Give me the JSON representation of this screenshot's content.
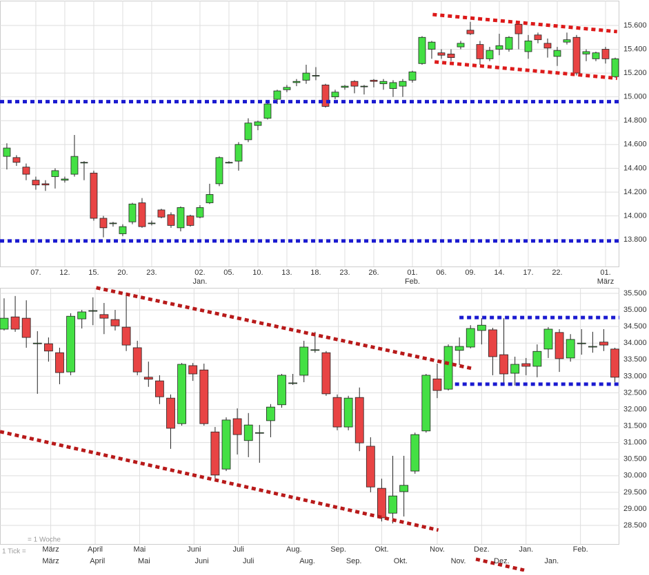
{
  "chart_data": [
    {
      "type": "candlestick",
      "xlim": [
        -0.71,
        63.43
      ],
      "ylim": [
        13575,
        15808
      ],
      "yticks": [
        {
          "value": 13800,
          "label": "13.800"
        },
        {
          "value": 14000,
          "label": "14.000"
        },
        {
          "value": 14200,
          "label": "14.200"
        },
        {
          "value": 14400,
          "label": "14.400"
        },
        {
          "value": 14600,
          "label": "14.600"
        },
        {
          "value": 14800,
          "label": "14.800"
        },
        {
          "value": 15000,
          "label": "15.000"
        },
        {
          "value": 15200,
          "label": "15.200"
        },
        {
          "value": 15400,
          "label": "15.400"
        },
        {
          "value": 15600,
          "label": "15.600"
        }
      ],
      "xticks": [
        {
          "value": 3,
          "label": "07."
        },
        {
          "value": 6,
          "label": "12."
        },
        {
          "value": 9,
          "label": "15."
        },
        {
          "value": 12,
          "label": "20."
        },
        {
          "value": 15,
          "label": "23."
        },
        {
          "value": 20,
          "label": "02.",
          "label2": "Jan."
        },
        {
          "value": 23,
          "label": "05."
        },
        {
          "value": 26,
          "label": "10."
        },
        {
          "value": 29,
          "label": "13."
        },
        {
          "value": 32,
          "label": "18."
        },
        {
          "value": 35,
          "label": "23."
        },
        {
          "value": 38,
          "label": "26."
        },
        {
          "value": 42,
          "label": "01.",
          "label2": "Feb."
        },
        {
          "value": 45,
          "label": "06."
        },
        {
          "value": 48,
          "label": "09."
        },
        {
          "value": 51,
          "label": "14."
        },
        {
          "value": 54,
          "label": "17."
        },
        {
          "value": 57,
          "label": "22."
        },
        {
          "value": 62,
          "label": "01.",
          "label2": "März"
        }
      ],
      "grid": true,
      "up_color": "#44e044",
      "down_color": "#e84444",
      "open": [
        14500,
        14490,
        14410,
        14300,
        14270,
        14330,
        14300,
        14350,
        14450,
        14360,
        13980,
        13940,
        13850,
        13950,
        14110,
        13940,
        14050,
        14010,
        13900,
        14000,
        13990,
        14110,
        14270,
        14450,
        14460,
        14640,
        14760,
        14820,
        14980,
        15060,
        15120,
        15140,
        15180,
        15100,
        15000,
        15080,
        15130,
        15090,
        15140,
        15110,
        15070,
        15090,
        15140,
        15280,
        15400,
        15370,
        15360,
        15420,
        15560,
        15440,
        15320,
        15400,
        15400,
        15610,
        15380,
        15520,
        15450,
        15340,
        15460,
        15500,
        15360,
        15320,
        15400,
        15170
      ],
      "high": [
        14610,
        14510,
        14440,
        14330,
        14300,
        14400,
        14330,
        14680,
        14460,
        14380,
        14000,
        13950,
        13930,
        14110,
        14150,
        13960,
        14060,
        14030,
        14080,
        14010,
        14090,
        14270,
        14500,
        14460,
        14620,
        14820,
        14800,
        14970,
        15060,
        15100,
        15150,
        15270,
        15250,
        15110,
        15060,
        15100,
        15140,
        15100,
        15150,
        15150,
        15140,
        15150,
        15220,
        15510,
        15470,
        15400,
        15400,
        15470,
        15630,
        15470,
        15420,
        15530,
        15510,
        15620,
        15520,
        15540,
        15490,
        15420,
        15540,
        15520,
        15400,
        15380,
        15420,
        15330
      ],
      "low": [
        14390,
        14420,
        14300,
        14220,
        14210,
        14230,
        14280,
        14330,
        14300,
        13960,
        13820,
        13910,
        13830,
        13930,
        13900,
        13920,
        13980,
        13900,
        13870,
        13910,
        13980,
        14100,
        14250,
        14440,
        14380,
        14620,
        14720,
        14810,
        14940,
        15040,
        15090,
        15110,
        15140,
        14910,
        14980,
        15060,
        15030,
        15020,
        15080,
        15060,
        15000,
        15000,
        15120,
        15270,
        15320,
        15320,
        15300,
        15400,
        15520,
        15270,
        15300,
        15350,
        15380,
        15400,
        15320,
        15450,
        15330,
        15260,
        15440,
        15180,
        15300,
        15300,
        15280,
        15160
      ],
      "close": [
        14570,
        14450,
        14350,
        14260,
        14260,
        14380,
        14310,
        14500,
        14450,
        13980,
        13900,
        13940,
        13910,
        14100,
        13910,
        13940,
        13990,
        13920,
        14070,
        13920,
        14070,
        14180,
        14490,
        14450,
        14600,
        14780,
        14790,
        14940,
        15050,
        15080,
        15130,
        15200,
        15180,
        14920,
        15040,
        15090,
        15090,
        15090,
        15130,
        15130,
        15120,
        15130,
        15210,
        15500,
        15460,
        15350,
        15330,
        15450,
        15530,
        15320,
        15390,
        15430,
        15500,
        15530,
        15470,
        15480,
        15410,
        15390,
        15480,
        15200,
        15380,
        15370,
        15320,
        15320
      ],
      "lines": [
        {
          "color": "#1a1ad0",
          "x": [
            -0.71,
            63.43
          ],
          "y": [
            14960,
            14960
          ]
        },
        {
          "color": "#1a1ad0",
          "x": [
            -0.71,
            63.43
          ],
          "y": [
            13790,
            13790
          ]
        },
        {
          "color": "#dd1a1a",
          "x": [
            44.1,
            63.2
          ],
          "y": [
            15692,
            15548
          ]
        },
        {
          "color": "#dd1a1a",
          "x": [
            44.3,
            63.2
          ],
          "y": [
            15294,
            15156
          ]
        }
      ]
    },
    {
      "type": "candlestick",
      "xlim": [
        -0.37,
        55.4
      ],
      "ylim": [
        27940,
        35666
      ],
      "yticks": [
        {
          "value": 28500,
          "label": "28.500"
        },
        {
          "value": 29000,
          "label": "29.000"
        },
        {
          "value": 29500,
          "label": "29.500"
        },
        {
          "value": 30000,
          "label": "30.000"
        },
        {
          "value": 30500,
          "label": "30.500"
        },
        {
          "value": 31000,
          "label": "31.000"
        },
        {
          "value": 31500,
          "label": "31.500"
        },
        {
          "value": 32000,
          "label": "32.000"
        },
        {
          "value": 32500,
          "label": "32.500"
        },
        {
          "value": 33000,
          "label": "33.000"
        },
        {
          "value": 33500,
          "label": "33.500"
        },
        {
          "value": 34000,
          "label": "34.000"
        },
        {
          "value": 34500,
          "label": "34.500"
        },
        {
          "value": 35000,
          "label": "35.000"
        },
        {
          "value": 35500,
          "label": "35.500"
        }
      ],
      "xticks": [
        {
          "value": 4.2,
          "label": "März"
        },
        {
          "value": 8.2,
          "label": "April"
        },
        {
          "value": 12.2,
          "label": "Mai"
        },
        {
          "value": 17.1,
          "label": "Juni"
        },
        {
          "value": 21.1,
          "label": "Juli"
        },
        {
          "value": 26.1,
          "label": "Aug."
        },
        {
          "value": 30.1,
          "label": "Sep."
        },
        {
          "value": 34,
          "label": "Okt."
        },
        {
          "value": 39,
          "label": "Nov."
        },
        {
          "value": 43,
          "label": "Dez."
        },
        {
          "value": 47,
          "label": "Jan."
        },
        {
          "value": 51.9,
          "label": "Feb."
        }
      ],
      "xticks2": [
        {
          "value": 4.2,
          "label": "März"
        },
        {
          "value": 8.4,
          "label": "April"
        },
        {
          "value": 12.6,
          "label": "Mai"
        },
        {
          "value": 17.8,
          "label": "Juni"
        },
        {
          "value": 22.0,
          "label": "Juli"
        },
        {
          "value": 27.3,
          "label": "Aug."
        },
        {
          "value": 31.5,
          "label": "Sep."
        },
        {
          "value": 35.7,
          "label": "Okt."
        },
        {
          "value": 40.9,
          "label": "Nov."
        },
        {
          "value": 44.8,
          "label": "Dez."
        },
        {
          "value": 49.3,
          "label": "Jan."
        }
      ],
      "note": "= 1 Woche",
      "note2": "1 Tick =",
      "grid": true,
      "up_color": "#44e044",
      "down_color": "#e84444",
      "open": [
        34420,
        34790,
        34750,
        34000,
        33980,
        33710,
        33130,
        34730,
        34980,
        34860,
        34710,
        34480,
        33860,
        32970,
        32860,
        32340,
        31570,
        33320,
        33190,
        31320,
        30200,
        31720,
        31060,
        31300,
        31660,
        32140,
        32800,
        33030,
        33800,
        33710,
        32360,
        31470,
        32360,
        30890,
        29620,
        28870,
        29520,
        30140,
        31350,
        32920,
        32610,
        33780,
        33880,
        34380,
        34400,
        33650,
        33090,
        33380,
        33300,
        33820,
        34320,
        33550,
        34000,
        33900,
        34030,
        33820
      ],
      "high": [
        35350,
        35420,
        35290,
        34360,
        34170,
        33860,
        34900,
        35000,
        35380,
        35210,
        35000,
        35520,
        34070,
        33440,
        33030,
        32450,
        33400,
        33400,
        33380,
        31470,
        31760,
        32030,
        31890,
        31530,
        32160,
        33070,
        33070,
        34070,
        34340,
        33760,
        32450,
        32410,
        32660,
        31160,
        29910,
        30600,
        30600,
        31300,
        33070,
        33380,
        33960,
        34170,
        34540,
        34750,
        34460,
        34750,
        33590,
        33550,
        33960,
        34480,
        34420,
        34270,
        34420,
        34340,
        34420,
        33860
      ],
      "low": [
        34380,
        34340,
        33860,
        32470,
        33440,
        32760,
        33030,
        34440,
        34540,
        34270,
        34380,
        33760,
        33030,
        32680,
        32160,
        30810,
        31510,
        32860,
        31510,
        29910,
        30140,
        30640,
        30560,
        30390,
        31160,
        32050,
        32740,
        32820,
        33710,
        32410,
        31370,
        31370,
        30740,
        29500,
        28620,
        28560,
        28770,
        30060,
        31300,
        32340,
        32570,
        33340,
        33840,
        33960,
        33030,
        32760,
        32720,
        33030,
        32970,
        33550,
        33130,
        33440,
        33650,
        33710,
        33760,
        32820
      ],
      "close": [
        34750,
        34420,
        34170,
        34000,
        33760,
        33110,
        34810,
        34940,
        34980,
        34750,
        34520,
        33940,
        33130,
        32910,
        32380,
        31430,
        33360,
        33070,
        31570,
        30020,
        31680,
        31240,
        31530,
        31300,
        32070,
        33030,
        32800,
        33880,
        33800,
        32470,
        31470,
        32340,
        30990,
        29660,
        28730,
        29390,
        29710,
        31240,
        33030,
        32570,
        33900,
        33900,
        34440,
        34540,
        33590,
        33070,
        33360,
        33300,
        33750,
        34420,
        33530,
        34110,
        34000,
        33900,
        33940,
        32970
      ],
      "lines": [
        {
          "color": "#b81a1a",
          "x": [
            8.3,
            42.05
          ],
          "y": [
            35670,
            33240
          ]
        },
        {
          "color": "#b81a1a",
          "x": [
            -0.37,
            39.1
          ],
          "y": [
            31330,
            28360
          ]
        },
        {
          "color": "#1a1ad0",
          "x": [
            41,
            55.4
          ],
          "y": [
            34770,
            34770
          ]
        },
        {
          "color": "#1a1ad0",
          "x": [
            40.6,
            55.4
          ],
          "y": [
            32760,
            32760
          ]
        }
      ]
    }
  ]
}
